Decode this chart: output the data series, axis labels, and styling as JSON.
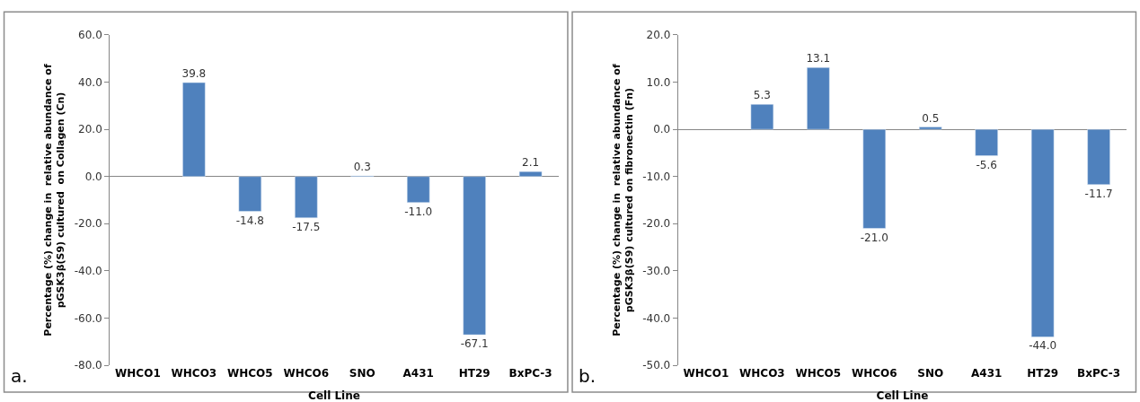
{
  "chart_data": [
    {
      "type": "bar",
      "categories": [
        "WHCO1",
        "WHCO3",
        "WHCO5",
        "WHCO6",
        "SNO",
        "A431",
        "HT29",
        "BxPC-3"
      ],
      "values": [
        null,
        39.8,
        -14.8,
        -17.5,
        0.3,
        -11.0,
        -67.1,
        2.1
      ],
      "value_labels": [
        null,
        "39.8",
        "-14.8",
        "-17.5",
        "0.3",
        "-11.0",
        "-67.1",
        "2.1"
      ],
      "color": "#4f81bd",
      "xlabel": "Cell Line",
      "ylabel": "Percentage (%) change in  relative abundance of\npGSK3β(S9) cultured  on Collagen (Cn)",
      "ylim": [
        -80,
        60
      ],
      "yticks": [
        {
          "value": -80,
          "label": "-80.0"
        },
        {
          "value": -60,
          "label": "-60.0"
        },
        {
          "value": -40,
          "label": "-40.0"
        },
        {
          "value": -20,
          "label": "-20.0"
        },
        {
          "value": 0,
          "label": "0.0"
        },
        {
          "value": 20,
          "label": "20.0"
        },
        {
          "value": 40,
          "label": "40.0"
        },
        {
          "value": 60,
          "label": "60.0"
        }
      ],
      "annotations": [
        "a."
      ]
    },
    {
      "type": "bar",
      "categories": [
        "WHCO1",
        "WHCO3",
        "WHCO5",
        "WHCO6",
        "SNO",
        "A431",
        "HT29",
        "BxPC-3"
      ],
      "values": [
        null,
        5.3,
        13.1,
        -21.0,
        0.5,
        -5.6,
        -44.0,
        -11.7
      ],
      "value_labels": [
        null,
        "5.3",
        "13.1",
        "-21.0",
        "0.5",
        "-5.6",
        "-44.0",
        "-11.7"
      ],
      "color": "#4f81bd",
      "xlabel": "Cell Line",
      "ylabel": "Percentage (%) change in  relative abundance of\npGSK3β(S9) cultured on fibronectin (Fn)",
      "ylim": [
        -50,
        20
      ],
      "yticks": [
        {
          "value": -50,
          "label": "-50.0"
        },
        {
          "value": -40,
          "label": "-40.0"
        },
        {
          "value": -30,
          "label": "-30.0"
        },
        {
          "value": -20,
          "label": "-20.0"
        },
        {
          "value": -10,
          "label": "-10.0"
        },
        {
          "value": 0,
          "label": "0.0"
        },
        {
          "value": 10,
          "label": "10.0"
        },
        {
          "value": 20,
          "label": "20.0"
        }
      ],
      "annotations": [
        "b."
      ]
    }
  ]
}
